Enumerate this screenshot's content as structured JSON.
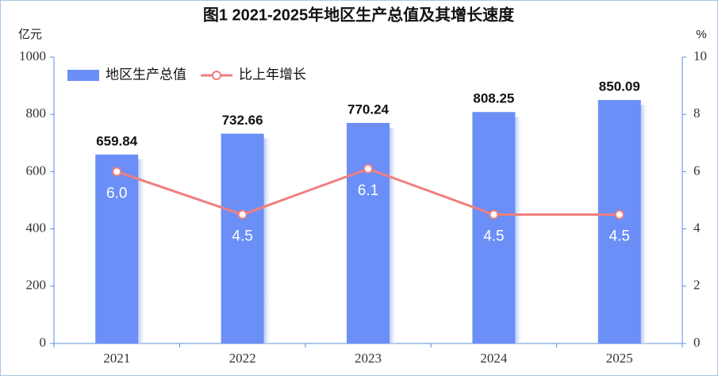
{
  "chart_data": {
    "type": "bar",
    "title": "图1 2021-2025年地区生产总值及其增长速度",
    "y_label": "亿元",
    "y2_label": "%",
    "categories": [
      "2021",
      "2022",
      "2023",
      "2024",
      "2025"
    ],
    "series": [
      {
        "name": "地区生产总值",
        "type": "bar",
        "color": "#6b8ff7",
        "values": [
          659.84,
          732.66,
          770.24,
          808.25,
          850.09
        ]
      },
      {
        "name": "比上年增长",
        "type": "line",
        "axis": "y2",
        "color": "#f07f7f",
        "values": [
          6.0,
          4.5,
          6.1,
          4.5,
          4.5
        ],
        "value_labels": [
          "6.0",
          "4.5",
          "6.1",
          "4.5",
          "4.5"
        ]
      }
    ],
    "ylim": [
      0,
      1000
    ],
    "yticks": [
      0,
      200,
      400,
      600,
      800,
      1000
    ],
    "y2lim": [
      0,
      10
    ],
    "y2ticks": [
      0,
      2,
      4,
      6,
      8,
      10
    ],
    "legend": "top-left"
  }
}
